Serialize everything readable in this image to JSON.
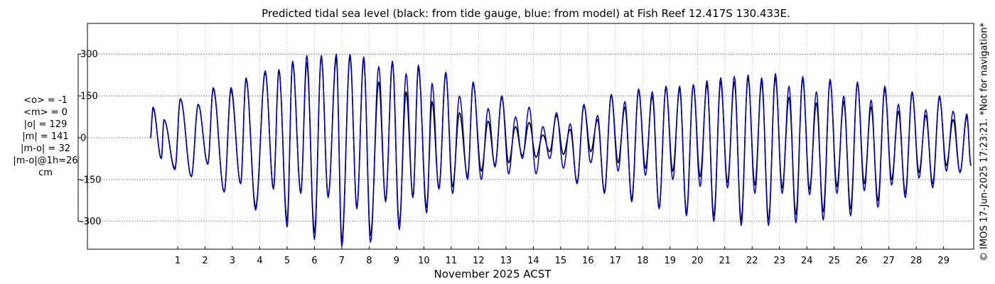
{
  "chart_data": {
    "type": "line",
    "title": "Predicted tidal sea level (black: from tide gauge, blue: from model) at Fish Reef 12.417S 130.433E.",
    "xlabel": "November 2025 ACST",
    "ylabel": "",
    "x_unit": "day of month",
    "xlim": [
      -2.3,
      30.1
    ],
    "ylim": [
      -400,
      410
    ],
    "y_ticks": [
      -300,
      -150,
      0,
      150,
      300
    ],
    "y_tick_labels": [
      "-300",
      "-150",
      "0",
      "150",
      "300"
    ],
    "x_ticks": [
      1,
      2,
      3,
      4,
      5,
      6,
      7,
      8,
      9,
      10,
      11,
      12,
      13,
      14,
      15,
      16,
      17,
      18,
      19,
      20,
      21,
      22,
      23,
      24,
      25,
      26,
      27,
      28,
      29
    ],
    "x_tick_labels": [
      "1",
      "2",
      "3",
      "4",
      "5",
      "6",
      "7",
      "8",
      "9",
      "10",
      "11",
      "12",
      "13",
      "14",
      "15",
      "16",
      "17",
      "18",
      "19",
      "20",
      "21",
      "22",
      "23",
      "24",
      "25",
      "26",
      "27",
      "28",
      "29"
    ],
    "grid": true,
    "series": [
      {
        "color": "#000000",
        "x": [
          0.0,
          0.1,
          0.4,
          0.5,
          0.9,
          1.1,
          1.5,
          1.75,
          2.1,
          2.3,
          2.7,
          2.95,
          3.3,
          3.5,
          3.85,
          4.2,
          4.5,
          4.7,
          5.0,
          5.2,
          5.5,
          5.72,
          6.0,
          6.25,
          6.5,
          6.8,
          7.0,
          7.3,
          7.55,
          7.8,
          8.05,
          8.35,
          8.6,
          8.85,
          9.1,
          9.35,
          9.6,
          9.8,
          10.1,
          10.3,
          10.55,
          10.8,
          11.05,
          11.3,
          11.6,
          11.8,
          12.1,
          12.35,
          12.6,
          12.85,
          13.1,
          13.35,
          13.6,
          13.85,
          14.1,
          14.35,
          14.6,
          14.85,
          15.1,
          15.35,
          15.6,
          15.85,
          16.1,
          16.35,
          16.6,
          16.85,
          17.1,
          17.35,
          17.6,
          17.85,
          18.1,
          18.35,
          18.6,
          18.85,
          19.1,
          19.35,
          19.6,
          19.85,
          20.1,
          20.35,
          20.6,
          20.85,
          21.1,
          21.35,
          21.6,
          21.85,
          22.1,
          22.35,
          22.6,
          22.85,
          23.1,
          23.35,
          23.6,
          23.85,
          24.1,
          24.35,
          24.6,
          24.85,
          25.1,
          25.35,
          25.6,
          25.85,
          26.1,
          26.35,
          26.6,
          26.85,
          27.1,
          27.35,
          27.6,
          27.85,
          28.1,
          28.35,
          28.6,
          28.85,
          29.1,
          29.35,
          29.6,
          29.85,
          30.0
        ],
        "y": [
          -2,
          105,
          -75,
          65,
          -110,
          140,
          -140,
          120,
          -95,
          175,
          -195,
          170,
          -165,
          210,
          -250,
          235,
          -180,
          240,
          -300,
          270,
          -195,
          270,
          -340,
          290,
          -210,
          285,
          -370,
          290,
          -250,
          280,
          -350,
          200,
          -225,
          270,
          -310,
          165,
          -210,
          250,
          -250,
          130,
          -180,
          230,
          -175,
          90,
          -140,
          195,
          -120,
          60,
          -100,
          145,
          -90,
          40,
          -65,
          55,
          -70,
          10,
          -50,
          80,
          -60,
          30,
          -160,
          115,
          -50,
          65,
          -195,
          155,
          -90,
          110,
          -220,
          170,
          -110,
          150,
          -250,
          180,
          -120,
          175,
          -270,
          190,
          -140,
          190,
          -280,
          200,
          -160,
          200,
          -295,
          215,
          -170,
          200,
          -295,
          215,
          -180,
          145,
          -275,
          210,
          -185,
          125,
          -265,
          205,
          -175,
          130,
          -255,
          195,
          -165,
          110,
          -225,
          175,
          -150,
          95,
          -200,
          160,
          -125,
          80,
          -165,
          145,
          -100,
          65,
          -125,
          75,
          -100
        ]
      },
      {
        "color": "#0000cc",
        "x": [
          0.0,
          0.1,
          0.4,
          0.5,
          0.9,
          1.1,
          1.5,
          1.75,
          2.1,
          2.3,
          2.7,
          2.95,
          3.3,
          3.5,
          3.85,
          4.2,
          4.5,
          4.7,
          5.0,
          5.2,
          5.5,
          5.72,
          6.0,
          6.25,
          6.5,
          6.8,
          7.0,
          7.3,
          7.55,
          7.8,
          8.05,
          8.35,
          8.6,
          8.85,
          9.1,
          9.35,
          9.6,
          9.8,
          10.1,
          10.3,
          10.55,
          10.8,
          11.05,
          11.3,
          11.6,
          11.8,
          12.1,
          12.35,
          12.6,
          12.85,
          13.1,
          13.35,
          13.6,
          13.85,
          14.1,
          14.35,
          14.6,
          14.85,
          15.1,
          15.35,
          15.6,
          15.85,
          16.1,
          16.35,
          16.6,
          16.85,
          17.1,
          17.35,
          17.6,
          17.85,
          18.1,
          18.35,
          18.6,
          18.85,
          19.1,
          19.35,
          19.6,
          19.85,
          20.1,
          20.35,
          20.6,
          20.85,
          21.1,
          21.35,
          21.6,
          21.85,
          22.1,
          22.35,
          22.6,
          22.85,
          23.1,
          23.35,
          23.6,
          23.85,
          24.1,
          24.35,
          24.6,
          24.85,
          25.1,
          25.35,
          25.6,
          25.85,
          26.1,
          26.35,
          26.6,
          26.85,
          27.1,
          27.35,
          27.6,
          27.85,
          28.1,
          28.35,
          28.6,
          28.85,
          29.1,
          29.35,
          29.6,
          29.85,
          30.0
        ],
        "y": [
          -2,
          110,
          -75,
          65,
          -115,
          140,
          -140,
          120,
          -95,
          180,
          -195,
          180,
          -165,
          215,
          -260,
          240,
          -185,
          245,
          -320,
          275,
          -200,
          295,
          -365,
          295,
          -215,
          300,
          -390,
          300,
          -255,
          290,
          -375,
          255,
          -230,
          275,
          -330,
          230,
          -215,
          260,
          -270,
          195,
          -185,
          235,
          -200,
          150,
          -150,
          200,
          -150,
          105,
          -105,
          150,
          -130,
          75,
          -75,
          110,
          -130,
          40,
          -75,
          90,
          -110,
          50,
          -165,
          120,
          -90,
          80,
          -200,
          155,
          -120,
          130,
          -230,
          175,
          -135,
          165,
          -255,
          185,
          -150,
          185,
          -280,
          190,
          -175,
          205,
          -300,
          215,
          -180,
          220,
          -315,
          225,
          -200,
          215,
          -315,
          230,
          -200,
          185,
          -305,
          220,
          -205,
          165,
          -295,
          210,
          -200,
          150,
          -280,
          200,
          -190,
          135,
          -250,
          185,
          -170,
          120,
          -215,
          165,
          -145,
          100,
          -180,
          150,
          -120,
          95,
          -125,
          85,
          -100
        ]
      }
    ]
  },
  "stats": [
    "<o> = -1",
    "<m> = 0",
    "|o| = 129",
    "|m| = 141",
    "|m-o| = 32",
    "|m-o|@1h=26",
    "cm"
  ],
  "watermark": "© IMOS 17-Jun-2025 17:23:21. *Not for navigation*"
}
